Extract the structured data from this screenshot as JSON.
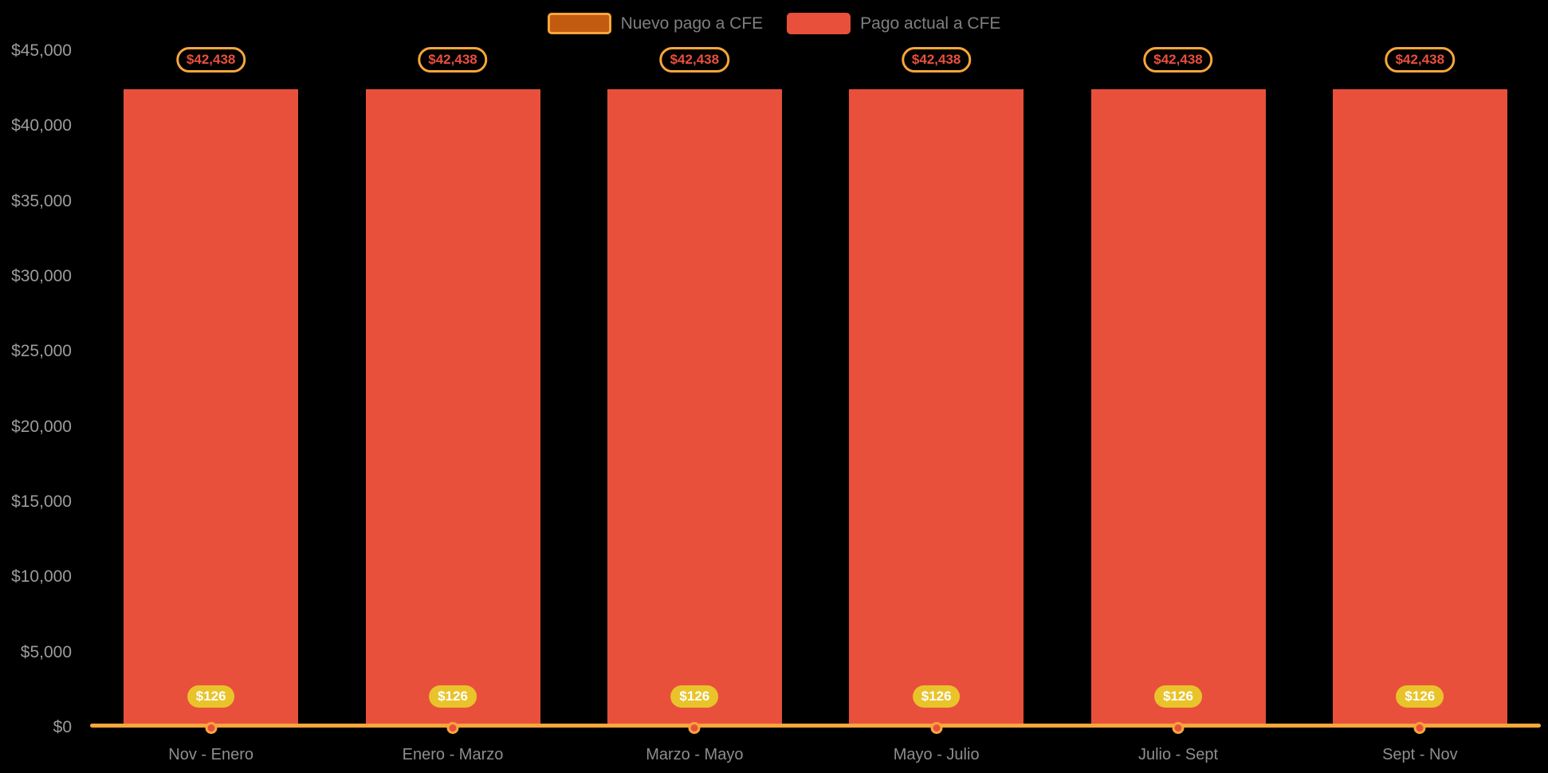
{
  "chart_data": {
    "type": "bar",
    "title": "",
    "categories": [
      "Nov - Enero",
      "Enero - Marzo",
      "Marzo - Mayo",
      "Mayo - Julio",
      "Julio - Sept",
      "Sept - Nov"
    ],
    "series": [
      {
        "name": "Nuevo pago a CFE",
        "type": "line",
        "values": [
          126,
          126,
          126,
          126,
          126,
          126
        ],
        "data_labels": [
          "$126",
          "$126",
          "$126",
          "$126",
          "$126",
          "$126"
        ],
        "color": "#F9A63B",
        "marker_fill": "#E8503C",
        "marker_border": "#F9A63B",
        "label_bg": "#E9C32A",
        "label_text_color": "#FFFFFF",
        "swatch_fill": "#C25A10",
        "swatch_border": "#F9A63B"
      },
      {
        "name": "Pago actual a CFE",
        "type": "bar",
        "values": [
          42438,
          42438,
          42438,
          42438,
          42438,
          42438
        ],
        "data_labels": [
          "$42,438",
          "$42,438",
          "$42,438",
          "$42,438",
          "$42,438",
          "$42,438"
        ],
        "color": "#E8503C",
        "label_bg": "#000000",
        "label_text_color": "#E8503C",
        "label_border": "#F9A63B",
        "swatch_fill": "#E8503C",
        "swatch_border": "#E8503C"
      }
    ],
    "xlabel": "",
    "ylabel": "",
    "ylim": [
      0,
      45000
    ],
    "y_ticks": [
      {
        "value": 0,
        "label": "$0"
      },
      {
        "value": 5000,
        "label": "$5,000"
      },
      {
        "value": 10000,
        "label": "$10,000"
      },
      {
        "value": 15000,
        "label": "$15,000"
      },
      {
        "value": 20000,
        "label": "$20,000"
      },
      {
        "value": 25000,
        "label": "$25,000"
      },
      {
        "value": 30000,
        "label": "$30,000"
      },
      {
        "value": 35000,
        "label": "$35,000"
      },
      {
        "value": 40000,
        "label": "$40,000"
      },
      {
        "value": 45000,
        "label": "$45,000"
      }
    ],
    "grid": false,
    "legend_position": "top-center",
    "background": "#000000"
  },
  "colors": {
    "background": "#000000",
    "y_axis_label": "#9C9C9C",
    "x_axis_label": "#8E8E90",
    "legend_label": "#7E7F81"
  }
}
